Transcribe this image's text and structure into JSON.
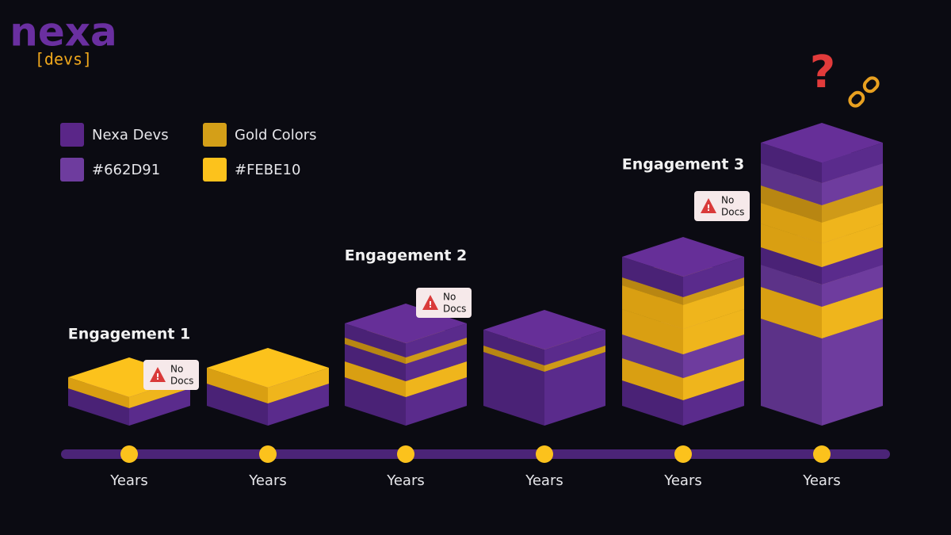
{
  "logo": {
    "name": "nexa",
    "tag": "[devs]"
  },
  "legend": [
    {
      "label": "Nexa Devs"
    },
    {
      "label": "Gold Colors"
    },
    {
      "label": "#662D91"
    },
    {
      "label": "#FEBE10"
    }
  ],
  "engagements": [
    "Engagement 1",
    "Engagement 2",
    "Engagement 3"
  ],
  "badges": [
    {
      "line1": "No",
      "line2": "Docs"
    },
    {
      "line1": "No",
      "line2": "Docs"
    },
    {
      "line1": "No",
      "line2": "Docs"
    }
  ],
  "timeline": [
    "Years",
    "Years",
    "Years",
    "Years",
    "Years",
    "Years"
  ],
  "icon": "?"
}
